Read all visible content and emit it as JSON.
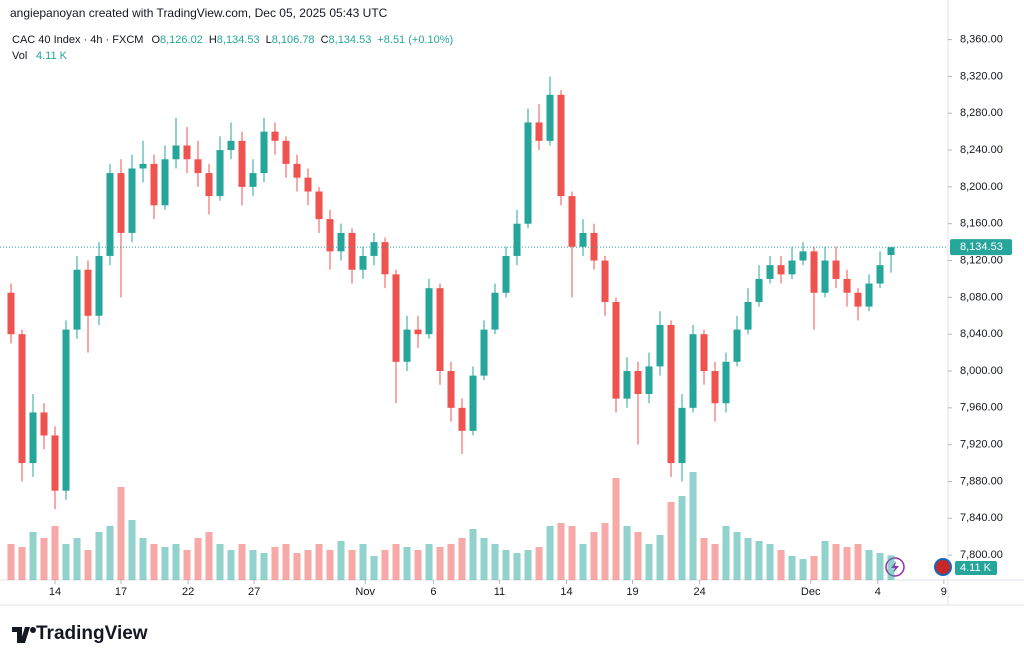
{
  "chart_data": {
    "type": "candlestick",
    "credit": "angiepanoyan created with TradingView.com, Dec 05, 2025 05:43 UTC",
    "symbol": "CAC 40 Index · 4h · FXCM",
    "ohlc_letters": [
      "O",
      "H",
      "L",
      "C"
    ],
    "last_labels": {
      "open": "8,126.02",
      "high": "8,134.53",
      "low": "8,106.78",
      "close": "8,134.53",
      "change": "+8.51 (+0.10%)"
    },
    "vol_title": "Vol",
    "vol_label": "4.11 K",
    "brand": "TradingView",
    "up_color": "#26a69a",
    "down_color": "#ef5350",
    "open": [
      8085,
      8040,
      7900,
      7955,
      7930,
      7870,
      8045,
      8110,
      8060,
      8125,
      8215,
      8150,
      8220,
      8225,
      8180,
      8230,
      8245,
      8230,
      8215,
      8190,
      8240,
      8250,
      8200,
      8215,
      8260,
      8250,
      8225,
      8210,
      8195,
      8165,
      8130,
      8150,
      8110,
      8125,
      8140,
      8105,
      8010,
      8045,
      8040,
      8090,
      8000,
      7960,
      7935,
      7995,
      8045,
      8085,
      8125,
      8160,
      8270,
      8250,
      8300,
      8190,
      8135,
      8150,
      8120,
      8075,
      7970,
      8000,
      7975,
      8005,
      8050,
      7900,
      7960,
      8040,
      8000,
      7965,
      8010,
      8045,
      8075,
      8100,
      8115,
      8105,
      8120,
      8130,
      8085,
      8120,
      8100,
      8085,
      8070,
      8095,
      8126.02
    ],
    "high": [
      8095,
      8045,
      7975,
      7965,
      7940,
      8055,
      8125,
      8120,
      8140,
      8225,
      8230,
      8235,
      8250,
      8235,
      8245,
      8275,
      8265,
      8250,
      8225,
      8255,
      8270,
      8260,
      8230,
      8275,
      8270,
      8255,
      8235,
      8220,
      8200,
      8175,
      8160,
      8155,
      8135,
      8150,
      8145,
      8110,
      8060,
      8060,
      8100,
      8095,
      8010,
      7970,
      8005,
      8055,
      8095,
      8135,
      8175,
      8285,
      8290,
      8320,
      8305,
      8195,
      8165,
      8160,
      8125,
      8080,
      8015,
      8010,
      8020,
      8065,
      8055,
      7975,
      8050,
      8045,
      8010,
      8020,
      8060,
      8090,
      8115,
      8125,
      8125,
      8135,
      8140,
      8135,
      8135,
      8135,
      8110,
      8090,
      8105,
      8130,
      8134.53
    ],
    "low": [
      8030,
      7880,
      7885,
      7915,
      7850,
      7860,
      8035,
      8020,
      8050,
      8115,
      8080,
      8140,
      8205,
      8165,
      8175,
      8220,
      8215,
      8200,
      8170,
      8185,
      8230,
      8180,
      8190,
      8205,
      8235,
      8210,
      8195,
      8180,
      8150,
      8110,
      8120,
      8095,
      8100,
      8115,
      8090,
      7965,
      8000,
      8025,
      8035,
      7985,
      7945,
      7910,
      7930,
      7990,
      8040,
      8080,
      8115,
      8155,
      8240,
      8245,
      8180,
      8080,
      8125,
      8110,
      8060,
      7955,
      7960,
      7920,
      7965,
      7995,
      7885,
      7880,
      7955,
      7985,
      7945,
      7955,
      8005,
      8040,
      8070,
      8095,
      8095,
      8100,
      8115,
      8045,
      8080,
      8090,
      8070,
      8055,
      8065,
      8090,
      8106.78
    ],
    "close": [
      8040,
      7900,
      7955,
      7930,
      7870,
      8045,
      8110,
      8060,
      8125,
      8215,
      8150,
      8220,
      8225,
      8180,
      8230,
      8245,
      8230,
      8215,
      8190,
      8240,
      8250,
      8200,
      8215,
      8260,
      8250,
      8225,
      8210,
      8195,
      8165,
      8130,
      8150,
      8110,
      8125,
      8140,
      8105,
      8010,
      8045,
      8040,
      8090,
      8000,
      7960,
      7935,
      7995,
      8045,
      8085,
      8125,
      8160,
      8270,
      8250,
      8300,
      8190,
      8135,
      8150,
      8120,
      8075,
      7970,
      8000,
      7975,
      8005,
      8050,
      7900,
      7960,
      8040,
      8000,
      7965,
      8010,
      8045,
      8075,
      8100,
      8115,
      8105,
      8120,
      8130,
      8085,
      8120,
      8100,
      8085,
      8070,
      8095,
      8115,
      8134.53
    ],
    "volume": [
      6,
      5.5,
      8,
      7,
      9,
      6,
      7,
      5,
      8,
      9,
      15.5,
      10,
      7,
      6,
      5.5,
      6,
      5,
      7,
      8,
      6,
      5,
      6,
      5,
      4.5,
      5.5,
      6,
      4.5,
      5,
      6,
      5,
      6.5,
      5,
      6,
      4,
      5,
      6,
      5.5,
      5,
      6,
      5.5,
      6,
      7,
      8.5,
      7,
      6,
      5,
      4.5,
      5,
      5.5,
      9,
      9.5,
      9,
      6,
      8,
      9.5,
      17,
      9,
      8,
      6,
      7.5,
      13,
      14,
      18,
      7,
      6,
      9,
      8,
      7,
      6.5,
      6,
      5,
      4,
      3.5,
      4,
      6.5,
      6,
      5.5,
      6,
      5,
      4.5,
      4.11
    ],
    "xlim": [
      -1,
      85.18
    ],
    "xticks": [
      {
        "value": 4,
        "label": "14"
      },
      {
        "value": 10,
        "label": "17"
      },
      {
        "value": 16.1,
        "label": "22"
      },
      {
        "value": 22.1,
        "label": "27"
      },
      {
        "value": 32.2,
        "label": "Nov"
      },
      {
        "value": 38.4,
        "label": "6"
      },
      {
        "value": 44.4,
        "label": "11"
      },
      {
        "value": 50.5,
        "label": "14"
      },
      {
        "value": 56.5,
        "label": "19"
      },
      {
        "value": 62.6,
        "label": "24"
      },
      {
        "value": 72.7,
        "label": "Dec"
      },
      {
        "value": 78.8,
        "label": "4"
      },
      {
        "value": 84.8,
        "label": "9"
      }
    ],
    "ylim": [
      7773,
      8403
    ],
    "yticks": [
      {
        "value": 7800,
        "label": "7,800.00"
      },
      {
        "value": 7840,
        "label": "7,840.00"
      },
      {
        "value": 7880,
        "label": "7,880.00"
      },
      {
        "value": 7920,
        "label": "7,920.00"
      },
      {
        "value": 7960,
        "label": "7,960.00"
      },
      {
        "value": 8000,
        "label": "8,000.00"
      },
      {
        "value": 8040,
        "label": "8,040.00"
      },
      {
        "value": 8080,
        "label": "8,080.00"
      },
      {
        "value": 8120,
        "label": "8,120.00"
      },
      {
        "value": 8160,
        "label": "8,160.00"
      },
      {
        "value": 8200,
        "label": "8,200.00"
      },
      {
        "value": 8240,
        "label": "8,240.00"
      },
      {
        "value": 8280,
        "label": "8,280.00"
      },
      {
        "value": 8320,
        "label": "8,320.00"
      },
      {
        "value": 8360,
        "label": "8,360.00"
      }
    ]
  }
}
